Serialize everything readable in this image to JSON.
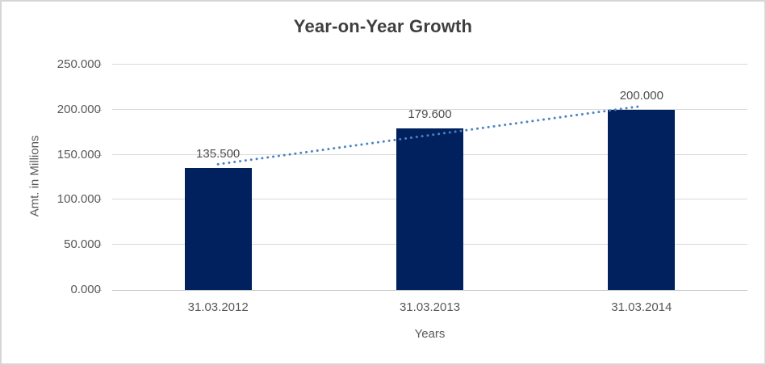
{
  "chart_data": {
    "type": "bar",
    "title": "Year-on-Year Growth",
    "categories": [
      "31.03.2012",
      "31.03.2013",
      "31.03.2014"
    ],
    "values": [
      135.5,
      179.6,
      200.0
    ],
    "value_labels": [
      "135.500",
      "179.600",
      "200.000"
    ],
    "xlabel": "Years",
    "ylabel": "Amt. in Millions",
    "ylim": [
      0,
      250
    ],
    "yticks": [
      {
        "v": 0,
        "label": "0.000"
      },
      {
        "v": 50,
        "label": "50.000"
      },
      {
        "v": 100,
        "label": "100.000"
      },
      {
        "v": 150,
        "label": "150.000"
      },
      {
        "v": 200,
        "label": "200.000"
      },
      {
        "v": 250,
        "label": "250.000"
      }
    ],
    "grid": true,
    "legend": "none",
    "trendline": {
      "type": "linear",
      "style": "dotted",
      "color": "#4a82c4"
    },
    "colors": {
      "bar": "#00215e",
      "gridline": "#d9d9d9",
      "axis_line": "#bfbfbf",
      "tick_text": "#595959",
      "title_text": "#3f3f3f",
      "value_label_text": "#4d4d4d",
      "border": "#d6d6d6",
      "background": "#ffffff"
    }
  }
}
